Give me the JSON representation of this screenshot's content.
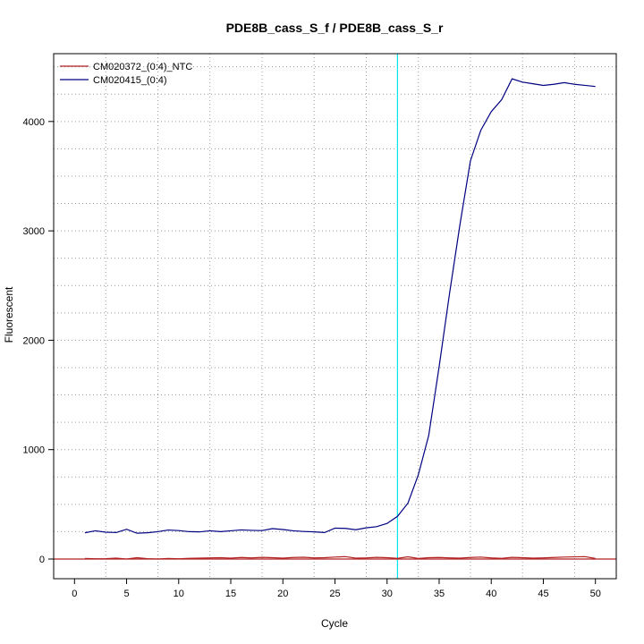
{
  "chart_data": {
    "type": "line",
    "title": "PDE8B_cass_S_f / PDE8B_cass_S_r",
    "xlabel": "Cycle",
    "ylabel": "Fluorescent",
    "xlim": [
      -2,
      52
    ],
    "ylim": [
      -180,
      4620
    ],
    "x_ticks": [
      0,
      5,
      10,
      15,
      20,
      25,
      30,
      35,
      40,
      45,
      50
    ],
    "y_ticks": [
      0,
      1000,
      2000,
      3000,
      4000
    ],
    "x_grid": [
      3,
      8,
      13,
      18,
      23,
      28,
      33,
      38,
      43,
      48
    ],
    "y_grid": [
      -200,
      250,
      500,
      750,
      1000,
      1250,
      1500,
      1750,
      2000,
      2250,
      2500,
      2750,
      3000,
      3250,
      3500,
      3750,
      4000,
      4250,
      4500
    ],
    "grid": true,
    "legend_position": "top-left",
    "threshold": {
      "x": 31,
      "color": "#00e5ee"
    },
    "baseline_color": "#b22222",
    "series": [
      {
        "name": "CM020372_(0:4)_NTC",
        "color": "#b22222",
        "x": [
          1,
          2,
          3,
          4,
          5,
          6,
          7,
          8,
          9,
          10,
          11,
          12,
          13,
          14,
          15,
          16,
          17,
          18,
          19,
          20,
          21,
          22,
          23,
          24,
          25,
          26,
          27,
          28,
          29,
          30,
          31,
          32,
          33,
          34,
          35,
          36,
          37,
          38,
          39,
          40,
          41,
          42,
          43,
          44,
          45,
          46,
          47,
          48,
          49,
          50
        ],
        "values": [
          5,
          2,
          3,
          8,
          0,
          12,
          3,
          0,
          5,
          2,
          6,
          8,
          10,
          12,
          8,
          14,
          10,
          15,
          12,
          8,
          14,
          16,
          10,
          12,
          18,
          22,
          8,
          10,
          15,
          12,
          6,
          20,
          5,
          12,
          14,
          10,
          8,
          14,
          18,
          10,
          6,
          15,
          12,
          8,
          10,
          14,
          18,
          20,
          22,
          5
        ]
      },
      {
        "name": "CM020415_(0:4)",
        "color": "#000080",
        "x": [
          1,
          2,
          3,
          4,
          5,
          6,
          7,
          8,
          9,
          10,
          11,
          12,
          13,
          14,
          15,
          16,
          17,
          18,
          19,
          20,
          21,
          22,
          23,
          24,
          25,
          26,
          27,
          28,
          29,
          30,
          31,
          32,
          33,
          34,
          35,
          36,
          37,
          38,
          39,
          40,
          41,
          42,
          43,
          44,
          45,
          46,
          47,
          48,
          49,
          50
        ],
        "values": [
          240,
          258,
          245,
          242,
          272,
          236,
          240,
          250,
          265,
          260,
          250,
          248,
          258,
          250,
          258,
          266,
          262,
          260,
          278,
          270,
          258,
          252,
          248,
          242,
          282,
          280,
          268,
          285,
          296,
          325,
          390,
          510,
          770,
          1130,
          1760,
          2430,
          3060,
          3640,
          3920,
          4090,
          4200,
          4390,
          4360,
          4345,
          4330,
          4340,
          4355,
          4340,
          4330,
          4320
        ]
      }
    ]
  }
}
